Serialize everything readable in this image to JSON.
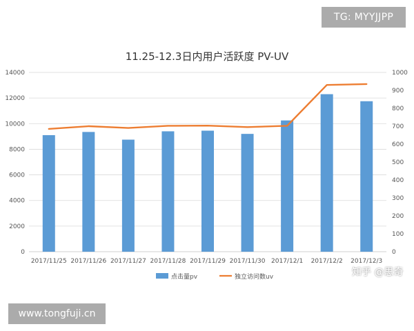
{
  "watermarks": {
    "top_right": "TG: MYYJJPP",
    "bottom_left": "www.tongfuji.cn",
    "zhihu": "知乎 @思奇"
  },
  "colors": {
    "bar": "#5b9bd5",
    "line": "#ed7d31",
    "axis_text": "#555555",
    "grid": "#d9d9d9",
    "title": "#333333"
  },
  "chart_data": {
    "type": "bar",
    "title": "11.25-12.3日内用户活跃度   PV-UV",
    "categories": [
      "2017/11/25",
      "2017/11/26",
      "2017/11/27",
      "2017/11/28",
      "2017/11/29",
      "2017/11/30",
      "2017/12/1",
      "2017/12/2",
      "2017/12/3"
    ],
    "series": [
      {
        "name": "点击量pv",
        "chart": "bar",
        "axis": "left",
        "values": [
          9100,
          9350,
          8750,
          9400,
          9450,
          9200,
          10250,
          12300,
          11750
        ]
      },
      {
        "name": "独立访问数uv",
        "chart": "line",
        "axis": "right",
        "values": [
          685,
          700,
          690,
          702,
          703,
          695,
          702,
          930,
          935
        ]
      }
    ],
    "y_left": {
      "ylim": [
        0,
        14000
      ],
      "ticks": [
        "0",
        "2000",
        "4000",
        "6000",
        "8000",
        "10000",
        "12000",
        "14000"
      ]
    },
    "y_right": {
      "ylim": [
        0,
        1000
      ],
      "ticks": [
        "0",
        "100",
        "200",
        "300",
        "400",
        "500",
        "600",
        "700",
        "800",
        "900",
        "1000"
      ]
    },
    "grid": true,
    "legend": "bottom-center"
  }
}
